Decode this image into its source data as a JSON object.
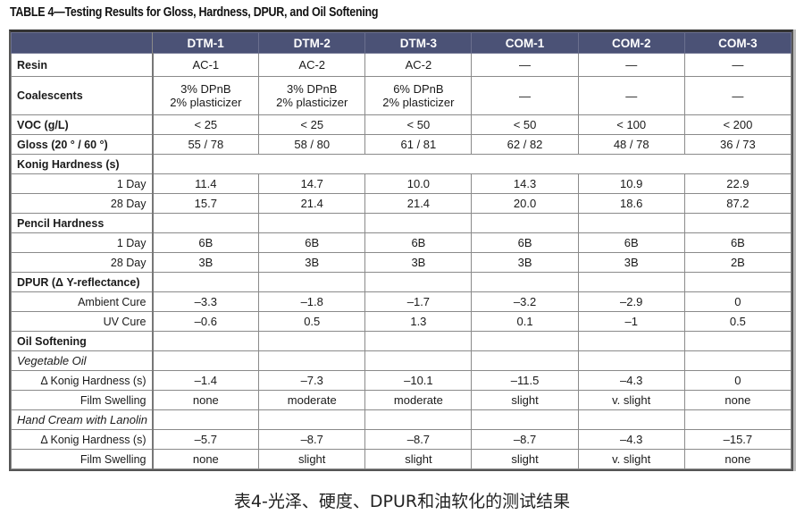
{
  "title": "TABLE 4—Testing Results for Gloss, Hardness, DPUR, and Oil Softening",
  "header": {
    "corner": "",
    "columns": [
      "DTM-1",
      "DTM-2",
      "DTM-3",
      "COM-1",
      "COM-2",
      "COM-3"
    ]
  },
  "rows": {
    "resin": {
      "label": "Resin",
      "values": [
        "AC-1",
        "AC-2",
        "AC-2",
        "—",
        "—",
        "—"
      ]
    },
    "coalescents": {
      "label": "Coalescents",
      "values": [
        {
          "line1": "3% DPnB",
          "line2": "2% plasticizer"
        },
        {
          "line1": "3% DPnB",
          "line2": "2% plasticizer"
        },
        {
          "line1": "6% DPnB",
          "line2": "2% plasticizer"
        },
        {
          "line1": "—",
          "line2": ""
        },
        {
          "line1": "—",
          "line2": ""
        },
        {
          "line1": "—",
          "line2": ""
        }
      ]
    },
    "voc": {
      "label": "VOC (g/L)",
      "values": [
        "< 25",
        "< 25",
        "< 50",
        "< 50",
        "< 100",
        "< 200"
      ]
    },
    "gloss": {
      "label": "Gloss (20 ° / 60 °)",
      "values": [
        "55 / 78",
        "58 / 80",
        "61 / 81",
        "62 / 82",
        "48 / 78",
        "36 / 73"
      ]
    },
    "konig": {
      "label": "Konig Hardness (s)",
      "day1": {
        "label": "1 Day",
        "values": [
          "11.4",
          "14.7",
          "10.0",
          "14.3",
          "10.9",
          "22.9"
        ]
      },
      "day28": {
        "label": "28 Day",
        "values": [
          "15.7",
          "21.4",
          "21.4",
          "20.0",
          "18.6",
          "87.2"
        ]
      }
    },
    "pencil": {
      "label": "Pencil Hardness",
      "day1": {
        "label": "1 Day",
        "values": [
          "6B",
          "6B",
          "6B",
          "6B",
          "6B",
          "6B"
        ]
      },
      "day28": {
        "label": "28 Day",
        "values": [
          "3B",
          "3B",
          "3B",
          "3B",
          "3B",
          "2B"
        ]
      }
    },
    "dpur": {
      "label": "DPUR (Δ Y-reflectance)",
      "ambient": {
        "label": "Ambient Cure",
        "values": [
          "–3.3",
          "–1.8",
          "–1.7",
          "–3.2",
          "–2.9",
          "0"
        ]
      },
      "uv": {
        "label": "UV Cure",
        "values": [
          "–0.6",
          "0.5",
          "1.3",
          "0.1",
          "–1",
          "0.5"
        ]
      }
    },
    "oil": {
      "label": "Oil Softening",
      "veg": {
        "label": "Vegetable Oil",
        "konig": {
          "label": "Δ Konig Hardness (s)",
          "values": [
            "–1.4",
            "–7.3",
            "–10.1",
            "–11.5",
            "–4.3",
            "0"
          ]
        },
        "swell": {
          "label": "Film Swelling",
          "values": [
            "none",
            "moderate",
            "moderate",
            "slight",
            "v. slight",
            "none"
          ]
        }
      },
      "hand": {
        "label": "Hand Cream with Lanolin",
        "konig": {
          "label": "Δ Konig Hardness (s)",
          "values": [
            "–5.7",
            "–8.7",
            "–8.7",
            "–8.7",
            "–4.3",
            "–15.7"
          ]
        },
        "swell": {
          "label": "Film Swelling",
          "values": [
            "none",
            "slight",
            "slight",
            "slight",
            "v. slight",
            "none"
          ]
        }
      }
    }
  },
  "caption": "表4-光泽、硬度、DPUR和油软化的测试结果",
  "colors": {
    "header_bg": "#4b5276",
    "header_text": "#ffffff",
    "grid": "#8a8a8a"
  }
}
